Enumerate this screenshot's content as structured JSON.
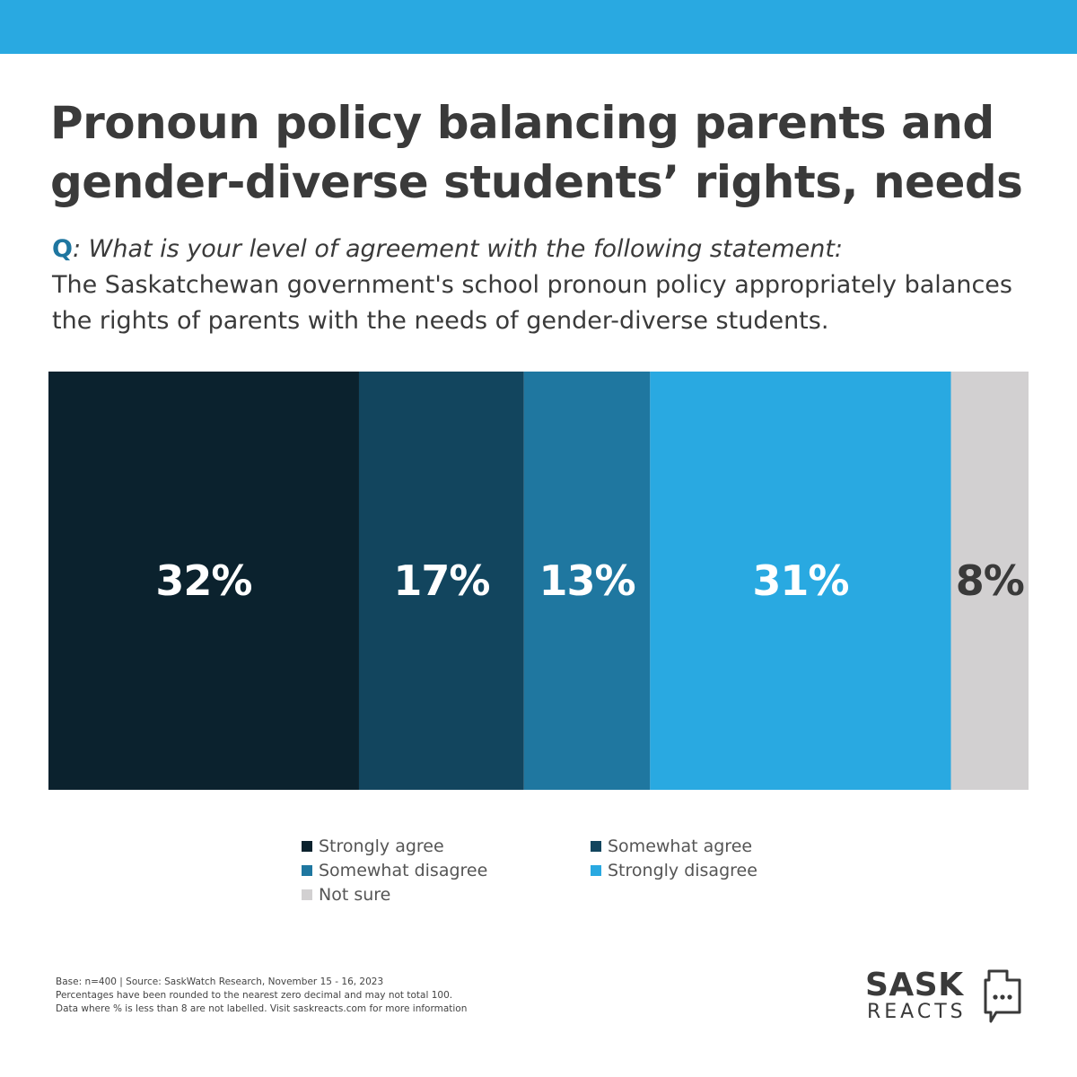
{
  "colors": {
    "band": "#29a9e1",
    "question_marker": "#1e76a0",
    "title": "#3a3a3a"
  },
  "title": {
    "line1": "Pronoun policy balancing parents and",
    "line2": "gender-diverse students’ rights, needs"
  },
  "question": {
    "marker": "Q",
    "prompt": ": What is your level of agreement with the following statement:",
    "statement": "The Saskatchewan government's school pronoun policy appropriately balances the rights of parents with the needs of gender-diverse students."
  },
  "chart_data": {
    "type": "bar",
    "orientation": "horizontal-stacked",
    "categories": [
      "Strongly agree",
      "Somewhat agree",
      "Somewhat disagree",
      "Strongly disagree",
      "Not sure"
    ],
    "values": [
      32,
      17,
      13,
      31,
      8
    ],
    "labels": [
      "32%",
      "17%",
      "13%",
      "31%",
      "8%"
    ],
    "colors": [
      "#0b222e",
      "#12455e",
      "#1f77a0",
      "#29a9e1",
      "#d2d0d1"
    ],
    "label_colors": [
      "#ffffff",
      "#ffffff",
      "#ffffff",
      "#ffffff",
      "#3a3a3a"
    ],
    "legend_position": "bottom",
    "grid": false
  },
  "footnote": {
    "line1": "Base: n=400 | Source: SaskWatch Research, November 15 - 16, 2023",
    "line2": "Percentages have been rounded to the nearest zero decimal and may not total 100.",
    "line3": "Data where % is less than 8 are not labelled. Visit saskreacts.com for more information"
  },
  "logo": {
    "word1": "SASK",
    "word2": "REACTS",
    "icon": "saskatchewan-speech-bubble-icon"
  }
}
